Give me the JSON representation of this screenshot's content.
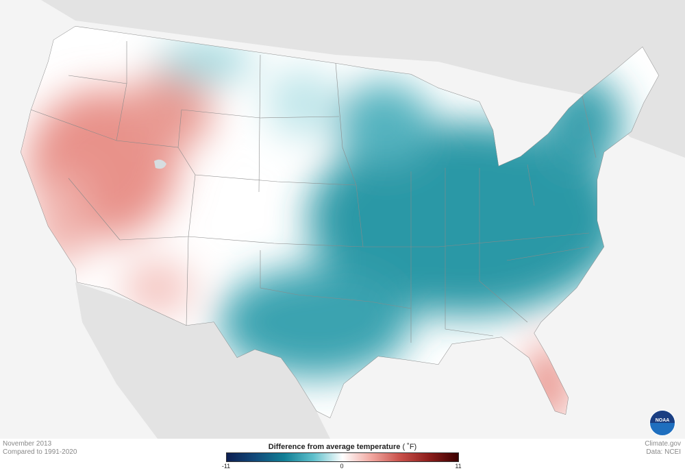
{
  "map": {
    "title": "Difference from average temperature",
    "unit": "( ˚F)",
    "period": "November 2013",
    "baseline": "Compared to 1991-2020",
    "credit": "Climate.gov",
    "source": "Data: NCEI",
    "logo": "NOAA"
  },
  "legend": {
    "min": "-11",
    "mid": "0",
    "max": "11",
    "colors": [
      "#0d1f52",
      "#124a7a",
      "#127f95",
      "#5fc0cc",
      "#ffffff",
      "#f1a7a0",
      "#c8504a",
      "#8c1d1b",
      "#3b0000"
    ]
  },
  "colors": {
    "background": "#f4f4f4",
    "neighbor_land": "#e3e3e3",
    "state_border": "#8a8a8a",
    "cold": "#1a8c9c",
    "warm": "#e07a72"
  }
}
